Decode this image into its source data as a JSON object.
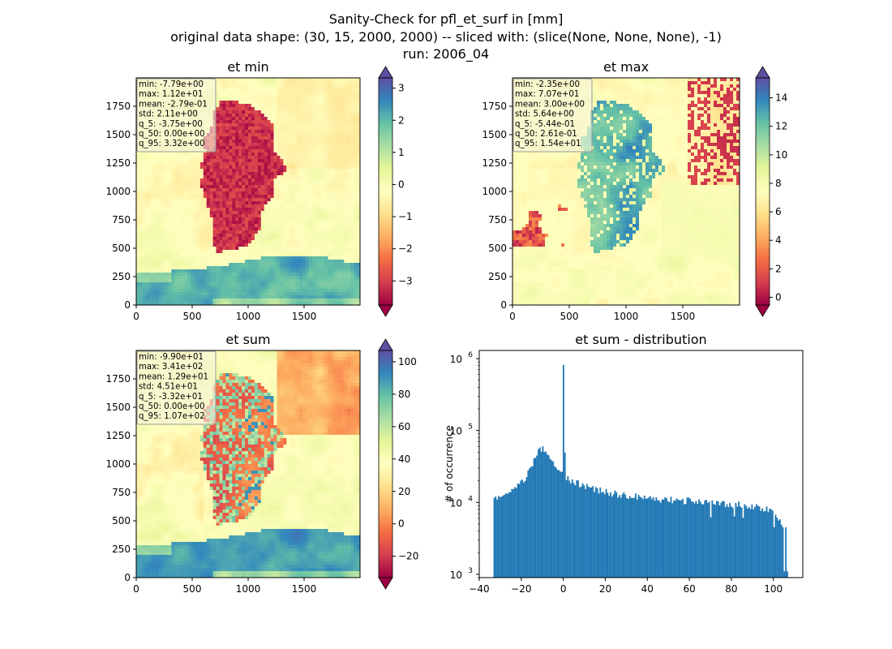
{
  "figure": {
    "title_line1": "Sanity-Check for pfl_et_surf in [mm]",
    "title_line2": "original data shape: (30, 15, 2000, 2000) -- sliced with: (slice(None, None, None), -1)",
    "title_line3": "run: 2006_04"
  },
  "colors": {
    "colormap": "Spectral",
    "spectral_stops": [
      "#9e0142",
      "#d53e4f",
      "#f46d43",
      "#fdae61",
      "#fee08b",
      "#ffffbf",
      "#e6f598",
      "#abdda4",
      "#66c2a5",
      "#3288bd",
      "#5e4fa2"
    ],
    "histogram_bar": "#1f77b4",
    "stats_box_bg": "#f5f5dc"
  },
  "panels": [
    {
      "title": "et min",
      "x_ticks": [
        "0",
        "500",
        "1000",
        "1500"
      ],
      "y_ticks": [
        "0",
        "250",
        "500",
        "750",
        "1000",
        "1250",
        "1500",
        "1750"
      ],
      "colorbar": {
        "range": [
          -3.75,
          3.32
        ],
        "ticks": [
          "3",
          "2",
          "1",
          "0",
          "−1",
          "−2",
          "−3"
        ],
        "extend": "both"
      },
      "stats": [
        "min: -7.79e+00",
        "max: 1.12e+01",
        "mean: -2.79e-01",
        "std: 2.11e+00",
        "q_5: -3.75e+00",
        "q_50: 0.00e+00",
        "q_95: 3.32e+00"
      ]
    },
    {
      "title": "et max",
      "x_ticks": [
        "0",
        "500",
        "1000",
        "1500"
      ],
      "y_ticks": [
        "0",
        "250",
        "500",
        "750",
        "1000",
        "1250",
        "1500",
        "1750"
      ],
      "colorbar": {
        "range": [
          -0.544,
          15.4
        ],
        "ticks": [
          "14",
          "12",
          "10",
          "8",
          "6",
          "4",
          "2",
          "0"
        ],
        "extend": "both"
      },
      "stats": [
        "min: -2.35e+00",
        "max: 7.07e+01",
        "mean: 3.00e+00",
        "std: 5.64e+00",
        "q_5: -5.44e-01",
        "q_50: 2.61e-01",
        "q_95: 1.54e+01"
      ]
    },
    {
      "title": "et sum",
      "x_ticks": [
        "0",
        "500",
        "1000",
        "1500"
      ],
      "y_ticks": [
        "0",
        "250",
        "500",
        "750",
        "1000",
        "1250",
        "1500",
        "1750"
      ],
      "colorbar": {
        "range": [
          -33.2,
          107
        ],
        "ticks": [
          "100",
          "80",
          "60",
          "40",
          "20",
          "0",
          "−20"
        ],
        "extend": "both"
      },
      "stats": [
        "min: -9.90e+01",
        "max: 3.41e+02",
        "mean: 1.29e+01",
        "std: 4.51e+01",
        "q_5: -3.32e+01",
        "q_50: 0.00e+00",
        "q_95: 1.07e+02"
      ]
    }
  ],
  "chart_data": [
    {
      "type": "heatmap",
      "title": "et min",
      "xlim": [
        0,
        2000
      ],
      "ylim": [
        0,
        2000
      ],
      "colormap": "Spectral",
      "clim": [
        -3.75,
        3.32
      ]
    },
    {
      "type": "heatmap",
      "title": "et max",
      "xlim": [
        0,
        2000
      ],
      "ylim": [
        0,
        2000
      ],
      "colormap": "Spectral",
      "clim": [
        -0.544,
        15.4
      ]
    },
    {
      "type": "heatmap",
      "title": "et sum",
      "xlim": [
        0,
        2000
      ],
      "ylim": [
        0,
        2000
      ],
      "colormap": "Spectral",
      "clim": [
        -33.2,
        107
      ]
    },
    {
      "type": "bar",
      "title": "et sum - distribution",
      "xlabel": "",
      "ylabel": "# of occurrence",
      "yscale": "log",
      "xlim": [
        -40,
        114
      ],
      "ylim": [
        900,
        1300000
      ],
      "x_ticks": [
        "−40",
        "−20",
        "0",
        "20",
        "40",
        "60",
        "80",
        "100"
      ],
      "y_ticks": [
        {
          "base": "10",
          "exp": "3"
        },
        {
          "base": "10",
          "exp": "4"
        },
        {
          "base": "10",
          "exp": "5"
        },
        {
          "base": "10",
          "exp": "6"
        }
      ],
      "bin_range": [
        -33.2,
        107
      ],
      "bins": 200,
      "profile": [
        {
          "x": -33,
          "y": 10500
        },
        {
          "x": -30,
          "y": 12500
        },
        {
          "x": -27,
          "y": 13500
        },
        {
          "x": -24,
          "y": 15000
        },
        {
          "x": -21,
          "y": 18000
        },
        {
          "x": -18,
          "y": 22000
        },
        {
          "x": -16,
          "y": 28000
        },
        {
          "x": -14,
          "y": 38000
        },
        {
          "x": -12,
          "y": 50000
        },
        {
          "x": -10,
          "y": 57000
        },
        {
          "x": -8,
          "y": 52000
        },
        {
          "x": -6,
          "y": 42000
        },
        {
          "x": -4,
          "y": 33000
        },
        {
          "x": -2,
          "y": 27000
        },
        {
          "x": -0.5,
          "y": 24000
        },
        {
          "x": 0,
          "y": 820000
        },
        {
          "x": 1,
          "y": 22000
        },
        {
          "x": 4,
          "y": 20000
        },
        {
          "x": 8,
          "y": 18000
        },
        {
          "x": 12,
          "y": 16000
        },
        {
          "x": 20,
          "y": 14000
        },
        {
          "x": 30,
          "y": 12500
        },
        {
          "x": 40,
          "y": 11500
        },
        {
          "x": 50,
          "y": 11000
        },
        {
          "x": 60,
          "y": 10500
        },
        {
          "x": 70,
          "y": 10000
        },
        {
          "x": 80,
          "y": 9500
        },
        {
          "x": 90,
          "y": 9000
        },
        {
          "x": 100,
          "y": 7500
        },
        {
          "x": 106,
          "y": 4500
        }
      ]
    }
  ]
}
